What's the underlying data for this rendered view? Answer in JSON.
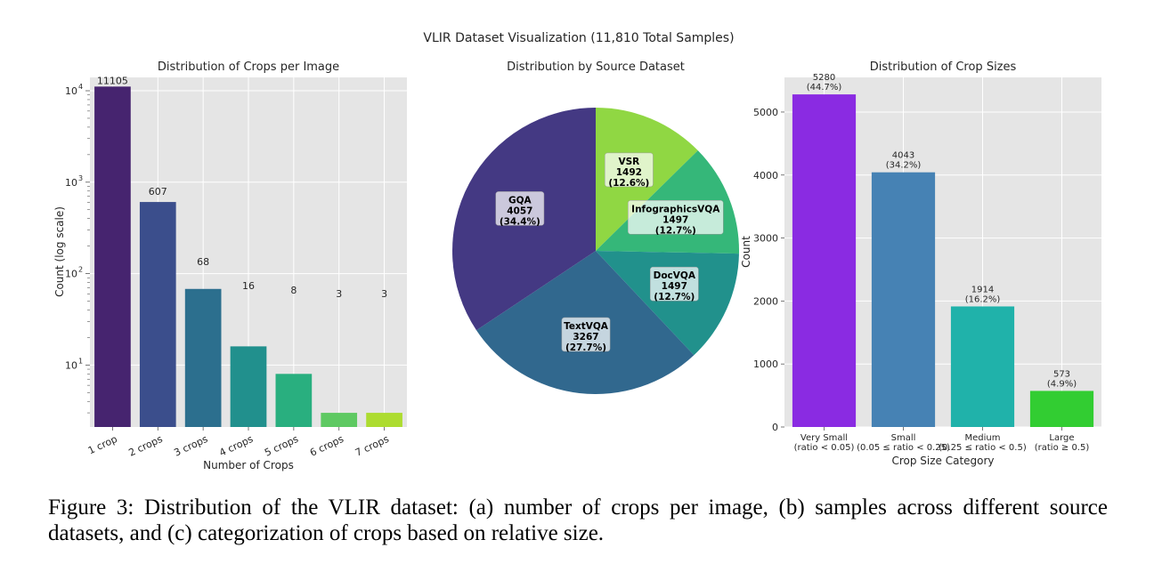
{
  "suptitle": "VLIR Dataset Visualization (11,810 Total Samples)",
  "caption": "Figure 3: Distribution of the VLIR dataset: (a) number of crops per image, (b) samples across different source datasets, and (c) categorization of crops based on relative size.",
  "chart_data": [
    {
      "type": "bar",
      "title": "Distribution of Crops per Image",
      "xlabel": "Number of Crops",
      "ylabel": "Count (log scale)",
      "yscale": "log",
      "ylim": [
        2.1,
        14000
      ],
      "yticks": [
        {
          "value": 10,
          "label": "10",
          "exp": "1"
        },
        {
          "value": 100,
          "label": "10",
          "exp": "2"
        },
        {
          "value": 1000,
          "label": "10",
          "exp": "3"
        },
        {
          "value": 10000,
          "label": "10",
          "exp": "4"
        }
      ],
      "categories": [
        "1 crop",
        "2 crops",
        "3 crops",
        "4 crops",
        "5 crops",
        "6 crops",
        "7 crops"
      ],
      "values": [
        11105,
        607,
        68,
        16,
        8,
        3,
        3
      ],
      "value_labels": [
        "11105",
        "607",
        "68",
        "16",
        "8",
        "3",
        "3"
      ],
      "colors": [
        "#46246f",
        "#3b4e8c",
        "#2c6f8e",
        "#21908d",
        "#29af7f",
        "#5ec962",
        "#addc30"
      ],
      "grid": true
    },
    {
      "type": "pie",
      "title": "Distribution by Source Dataset",
      "slices": [
        {
          "label": "VSR",
          "value": 1492,
          "pct": "(12.6%)",
          "color": "#90d743"
        },
        {
          "label": "InfographicsVQA",
          "value": 1497,
          "pct": "(12.7%)",
          "color": "#35b779"
        },
        {
          "label": "DocVQA",
          "value": 1497,
          "pct": "(12.7%)",
          "color": "#21918c"
        },
        {
          "label": "TextVQA",
          "value": 3267,
          "pct": "(27.7%)",
          "color": "#31688e"
        },
        {
          "label": "GQA",
          "value": 4057,
          "pct": "(34.4%)",
          "color": "#443983"
        }
      ]
    },
    {
      "type": "bar",
      "title": "Distribution of Crop Sizes",
      "xlabel": "Crop Size Category",
      "ylabel": "Count",
      "ylim": [
        0,
        5550
      ],
      "yticks": [
        0,
        1000,
        2000,
        3000,
        4000,
        5000
      ],
      "categories": [
        [
          "Very Small",
          "(ratio < 0.05)"
        ],
        [
          "Small",
          "(0.05 ≤ ratio < 0.25)"
        ],
        [
          "Medium",
          "(0.25 ≤ ratio < 0.5)"
        ],
        [
          "Large",
          "(ratio ≥ 0.5)"
        ]
      ],
      "values": [
        5280,
        4043,
        1914,
        573
      ],
      "value_labels": [
        [
          "5280",
          "(44.7%)"
        ],
        [
          "4043",
          "(34.2%)"
        ],
        [
          "1914",
          "(16.2%)"
        ],
        [
          "573",
          "(4.9%)"
        ]
      ],
      "colors": [
        "#8a2be2",
        "#4682b4",
        "#20b2aa",
        "#32cd32"
      ],
      "grid": true
    }
  ]
}
